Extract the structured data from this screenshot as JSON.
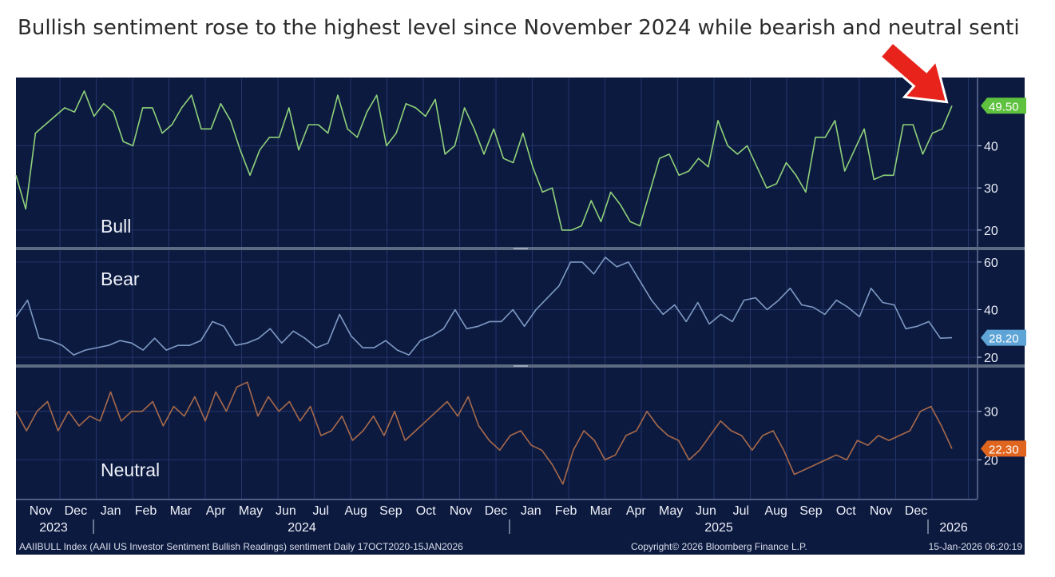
{
  "headline": "Bullish sentiment rose to the highest level since November 2024 while bearish and neutral senti",
  "colors": {
    "background": "#0d1a40",
    "grid": "#23356b",
    "bull_line": "#8fd27a",
    "bear_line": "#7e9ac4",
    "neutral_line": "#a86a4a",
    "bull_badge": "#5ec23e",
    "bear_badge": "#5ea4d6",
    "neutral_badge": "#e0651e",
    "arrow": "#e8231b"
  },
  "chart_data": {
    "type": "line",
    "x_axis": {
      "months": [
        "Nov",
        "Dec",
        "Jan",
        "Feb",
        "Mar",
        "Apr",
        "May",
        "Jun",
        "Jul",
        "Aug",
        "Sep",
        "Oct",
        "Nov",
        "Dec",
        "Jan",
        "Feb",
        "Mar",
        "Apr",
        "May",
        "Jun",
        "Jul",
        "Aug",
        "Sep",
        "Oct",
        "Nov",
        "Dec"
      ],
      "years": [
        "2023",
        "2024",
        "2025",
        "2026"
      ]
    },
    "panels": [
      {
        "name": "Bull",
        "ylim": [
          16,
          56
        ],
        "yticks": [
          20,
          30,
          40
        ],
        "last_value": "49.50",
        "values": [
          33,
          25,
          43,
          45,
          47,
          49,
          48,
          53,
          47,
          50,
          48,
          41,
          40,
          49,
          49,
          43,
          45,
          49,
          52,
          44,
          44,
          50,
          46,
          39,
          33,
          39,
          42,
          42,
          49,
          39,
          45,
          45,
          43,
          52,
          44,
          42,
          48,
          52,
          40,
          43,
          50,
          49,
          47,
          51,
          38,
          40,
          49,
          44,
          38,
          44,
          37,
          36,
          43,
          35,
          29,
          30,
          20,
          20,
          21,
          27,
          22,
          29,
          26,
          22,
          21,
          29,
          37,
          38,
          33,
          34,
          37,
          35,
          46,
          40,
          38,
          40,
          35,
          30,
          31,
          36,
          33,
          29,
          42,
          42,
          46,
          34,
          39,
          44,
          32,
          33,
          33,
          45,
          45,
          38,
          43,
          44,
          49.5
        ]
      },
      {
        "name": "Bear",
        "ylim": [
          17,
          65
        ],
        "yticks": [
          20,
          40,
          60
        ],
        "last_value": "28.20",
        "values": [
          37,
          44,
          28,
          27,
          25,
          21,
          23,
          24,
          25,
          27,
          26,
          23,
          28,
          23,
          25,
          25,
          27,
          35,
          33,
          25,
          26,
          28,
          32,
          26,
          31,
          28,
          24,
          26,
          38,
          29,
          24,
          24,
          27,
          23,
          21,
          27,
          29,
          32,
          40,
          32,
          33,
          35,
          35,
          40,
          33,
          40,
          45,
          50,
          60,
          60,
          55,
          62,
          58,
          60,
          52,
          44,
          38,
          42,
          35,
          43,
          34,
          38,
          35,
          44,
          45,
          40,
          44,
          49,
          42,
          41,
          38,
          44,
          41,
          37,
          49,
          43,
          42,
          32,
          33,
          35,
          28,
          28.2
        ]
      },
      {
        "name": "Neutral",
        "ylim": [
          12,
          39
        ],
        "yticks": [
          20,
          30
        ],
        "last_value": "22.30",
        "values": [
          30,
          26,
          30,
          32,
          26,
          30,
          27,
          29,
          28,
          34,
          28,
          30,
          30,
          32,
          27,
          31,
          29,
          33,
          28,
          34,
          30,
          35,
          36,
          29,
          33,
          30,
          32,
          28,
          31,
          25,
          26,
          29,
          24,
          26,
          29,
          25,
          30,
          24,
          26,
          28,
          30,
          32,
          29,
          33,
          27,
          24,
          22,
          25,
          26,
          23,
          22,
          19,
          15,
          22,
          26,
          24,
          20,
          21,
          25,
          26,
          30,
          27,
          25,
          24,
          20,
          22,
          25,
          28,
          26,
          25,
          22,
          25,
          26,
          22,
          17,
          18,
          19,
          20,
          21,
          20,
          24,
          23,
          25,
          24,
          25,
          26,
          30,
          31,
          27,
          22.3
        ]
      }
    ],
    "footer_left": "AAIIBULL Index (AAII US Investor Sentiment Bullish Readings) sentiment Daily 17OCT2020-15JAN2026",
    "footer_center": "Copyright© 2026 Bloomberg Finance L.P.",
    "footer_right": "15-Jan-2026 06:20:19"
  }
}
